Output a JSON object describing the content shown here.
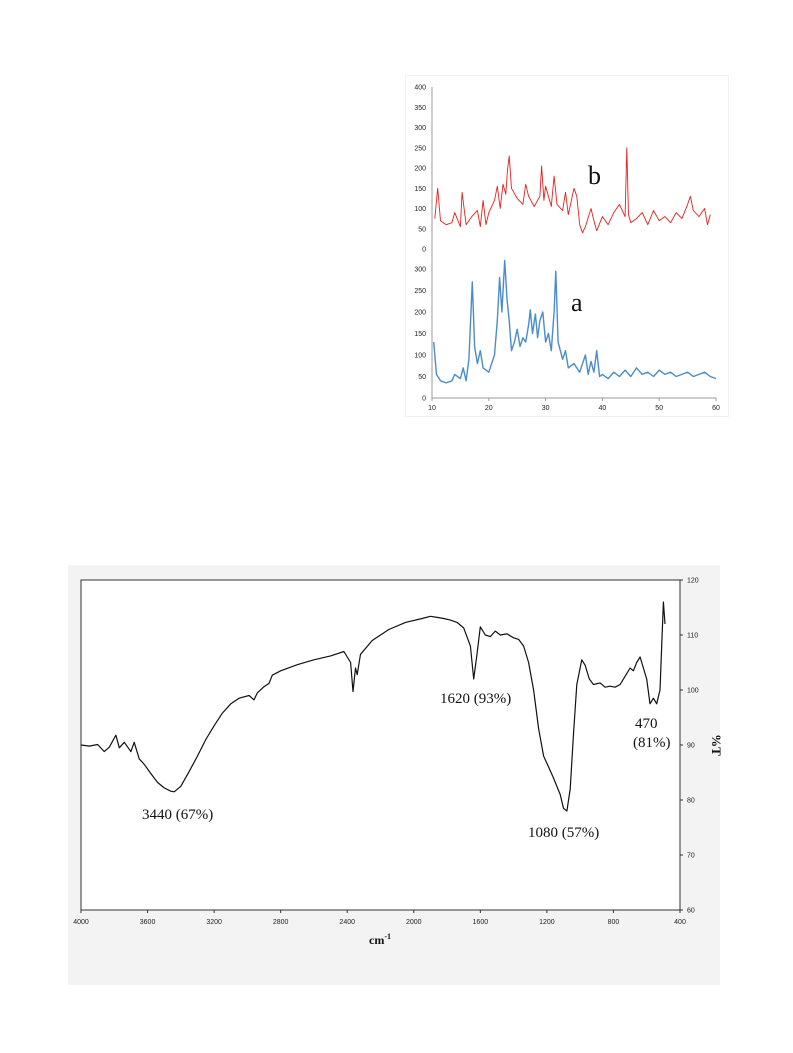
{
  "chart_data": [
    {
      "type": "line",
      "title": "",
      "xlabel": "",
      "ylabel": "",
      "xlim": [
        10,
        60
      ],
      "x_ticks": [
        "10",
        "20",
        "30",
        "40",
        "50",
        "60"
      ],
      "upper_ticks": [
        "0",
        "50",
        "100",
        "150",
        "200",
        "250",
        "300",
        "350",
        "400"
      ],
      "lower_ticks": [
        "0",
        "50",
        "100",
        "150",
        "200",
        "250",
        "300"
      ],
      "upper_ylim": [
        0,
        400
      ],
      "lower_ylim": [
        0,
        300
      ],
      "grid": false,
      "series": [
        {
          "name": "b",
          "color": "#e8201c",
          "panel": "upper",
          "points": [
            [
              10.5,
              75
            ],
            [
              11,
              150
            ],
            [
              11.5,
              70
            ],
            [
              12.5,
              60
            ],
            [
              13.5,
              65
            ],
            [
              14,
              90
            ],
            [
              15,
              55
            ],
            [
              15.3,
              140
            ],
            [
              16,
              60
            ],
            [
              17,
              80
            ],
            [
              18,
              95
            ],
            [
              18.5,
              55
            ],
            [
              19,
              120
            ],
            [
              19.5,
              60
            ],
            [
              20,
              90
            ],
            [
              21,
              120
            ],
            [
              21.5,
              155
            ],
            [
              22,
              100
            ],
            [
              22.5,
              160
            ],
            [
              23,
              135
            ],
            [
              23.3,
              195
            ],
            [
              23.6,
              230
            ],
            [
              24,
              150
            ],
            [
              25,
              125
            ],
            [
              26,
              110
            ],
            [
              26.5,
              160
            ],
            [
              27,
              130
            ],
            [
              28,
              105
            ],
            [
              29,
              130
            ],
            [
              29.3,
              205
            ],
            [
              29.7,
              120
            ],
            [
              30,
              155
            ],
            [
              31,
              105
            ],
            [
              31.5,
              180
            ],
            [
              32,
              110
            ],
            [
              33,
              95
            ],
            [
              33.5,
              140
            ],
            [
              34,
              85
            ],
            [
              35,
              150
            ],
            [
              35.5,
              130
            ],
            [
              36,
              60
            ],
            [
              36.5,
              40
            ],
            [
              37,
              55
            ],
            [
              38,
              100
            ],
            [
              38.5,
              70
            ],
            [
              39,
              45
            ],
            [
              40,
              80
            ],
            [
              41,
              60
            ],
            [
              42,
              90
            ],
            [
              43,
              110
            ],
            [
              44,
              80
            ],
            [
              44.3,
              250
            ],
            [
              44.6,
              85
            ],
            [
              45,
              65
            ],
            [
              46,
              75
            ],
            [
              47,
              90
            ],
            [
              48,
              60
            ],
            [
              49,
              95
            ],
            [
              50,
              70
            ],
            [
              51,
              80
            ],
            [
              52,
              65
            ],
            [
              53,
              90
            ],
            [
              54,
              75
            ],
            [
              55,
              110
            ],
            [
              55.5,
              130
            ],
            [
              56,
              95
            ],
            [
              57,
              80
            ],
            [
              58,
              100
            ],
            [
              58.5,
              60
            ],
            [
              59,
              85
            ]
          ]
        },
        {
          "name": "a",
          "color": "#4a8ccc",
          "panel": "lower",
          "points": [
            [
              10.3,
              130
            ],
            [
              10.8,
              55
            ],
            [
              11.5,
              40
            ],
            [
              12.5,
              35
            ],
            [
              13.5,
              40
            ],
            [
              14,
              55
            ],
            [
              15,
              45
            ],
            [
              15.5,
              70
            ],
            [
              16,
              40
            ],
            [
              16.5,
              90
            ],
            [
              17.1,
              270
            ],
            [
              17.5,
              120
            ],
            [
              18,
              80
            ],
            [
              18.5,
              110
            ],
            [
              19,
              70
            ],
            [
              20,
              60
            ],
            [
              21,
              100
            ],
            [
              21.5,
              180
            ],
            [
              21.9,
              280
            ],
            [
              22.3,
              200
            ],
            [
              22.8,
              320
            ],
            [
              23.2,
              230
            ],
            [
              23.6,
              180
            ],
            [
              24,
              110
            ],
            [
              24.5,
              130
            ],
            [
              25,
              160
            ],
            [
              25.5,
              120
            ],
            [
              26,
              140
            ],
            [
              26.5,
              130
            ],
            [
              27,
              170
            ],
            [
              27.3,
              205
            ],
            [
              27.7,
              150
            ],
            [
              28.2,
              195
            ],
            [
              28.6,
              140
            ],
            [
              29,
              180
            ],
            [
              29.5,
              200
            ],
            [
              30,
              130
            ],
            [
              30.5,
              150
            ],
            [
              31,
              110
            ],
            [
              31.5,
              200
            ],
            [
              31.8,
              295
            ],
            [
              32.2,
              130
            ],
            [
              33,
              90
            ],
            [
              33.5,
              110
            ],
            [
              34,
              70
            ],
            [
              35,
              80
            ],
            [
              36,
              60
            ],
            [
              37,
              100
            ],
            [
              37.5,
              55
            ],
            [
              38,
              85
            ],
            [
              38.5,
              60
            ],
            [
              39,
              110
            ],
            [
              39.5,
              50
            ],
            [
              40,
              55
            ],
            [
              41,
              45
            ],
            [
              42,
              60
            ],
            [
              43,
              50
            ],
            [
              44,
              65
            ],
            [
              45,
              50
            ],
            [
              46,
              70
            ],
            [
              47,
              55
            ],
            [
              48,
              60
            ],
            [
              49,
              50
            ],
            [
              50,
              65
            ],
            [
              51,
              55
            ],
            [
              52,
              60
            ],
            [
              53,
              50
            ],
            [
              54,
              55
            ],
            [
              55,
              60
            ],
            [
              56,
              50
            ],
            [
              57,
              55
            ],
            [
              58,
              60
            ],
            [
              59,
              50
            ],
            [
              60,
              45
            ]
          ]
        }
      ],
      "annotations": [
        "b",
        "a"
      ]
    },
    {
      "type": "line",
      "title": "",
      "xlabel": "cm-1",
      "ylabel": "%T",
      "xlim": [
        4000,
        400
      ],
      "ylim": [
        60,
        120
      ],
      "x_ticks": [
        "4000",
        "3600",
        "3200",
        "2800",
        "2400",
        "2000",
        "1600",
        "1200",
        "800",
        "400"
      ],
      "y_ticks": [
        "60",
        "70",
        "80",
        "90",
        "100",
        "110",
        "120"
      ],
      "grid": false,
      "series": [
        {
          "name": "",
          "color": "#111111",
          "points": [
            [
              4000,
              90
            ],
            [
              3950,
              89.8
            ],
            [
              3900,
              90.1
            ],
            [
              3860,
              88.8
            ],
            [
              3830,
              89.6
            ],
            [
              3790,
              91.8
            ],
            [
              3770,
              89.5
            ],
            [
              3740,
              90.5
            ],
            [
              3700,
              88.8
            ],
            [
              3680,
              90.5
            ],
            [
              3650,
              87.5
            ],
            [
              3620,
              86.5
            ],
            [
              3580,
              84.8
            ],
            [
              3540,
              83.2
            ],
            [
              3500,
              82.2
            ],
            [
              3460,
              81.6
            ],
            [
              3440,
              81.5
            ],
            [
              3400,
              82.5
            ],
            [
              3350,
              85.2
            ],
            [
              3300,
              88
            ],
            [
              3250,
              91
            ],
            [
              3200,
              93.5
            ],
            [
              3150,
              95.8
            ],
            [
              3100,
              97.5
            ],
            [
              3050,
              98.5
            ],
            [
              2990,
              99
            ],
            [
              2960,
              98.2
            ],
            [
              2940,
              99.5
            ],
            [
              2900,
              100.6
            ],
            [
              2870,
              101.2
            ],
            [
              2850,
              102.7
            ],
            [
              2800,
              103.5
            ],
            [
              2700,
              104.6
            ],
            [
              2600,
              105.5
            ],
            [
              2500,
              106.2
            ],
            [
              2420,
              107
            ],
            [
              2380,
              105
            ],
            [
              2365,
              99.7
            ],
            [
              2350,
              104
            ],
            [
              2340,
              102.8
            ],
            [
              2320,
              106.5
            ],
            [
              2250,
              109
            ],
            [
              2150,
              111
            ],
            [
              2050,
              112.3
            ],
            [
              1950,
              113
            ],
            [
              1900,
              113.4
            ],
            [
              1860,
              113.2
            ],
            [
              1820,
              113
            ],
            [
              1780,
              112.7
            ],
            [
              1740,
              112.3
            ],
            [
              1700,
              111.3
            ],
            [
              1660,
              108
            ],
            [
              1640,
              102
            ],
            [
              1620,
              106.5
            ],
            [
              1600,
              111.5
            ],
            [
              1570,
              110
            ],
            [
              1540,
              109.7
            ],
            [
              1510,
              110.7
            ],
            [
              1480,
              110
            ],
            [
              1440,
              110.2
            ],
            [
              1400,
              109.5
            ],
            [
              1370,
              109.2
            ],
            [
              1340,
              108
            ],
            [
              1310,
              105
            ],
            [
              1280,
              100
            ],
            [
              1250,
              93
            ],
            [
              1220,
              88
            ],
            [
              1190,
              86
            ],
            [
              1160,
              84
            ],
            [
              1120,
              81
            ],
            [
              1100,
              78.5
            ],
            [
              1080,
              78
            ],
            [
              1060,
              82
            ],
            [
              1040,
              92
            ],
            [
              1020,
              101
            ],
            [
              990,
              105.5
            ],
            [
              970,
              104.5
            ],
            [
              945,
              102
            ],
            [
              920,
              101
            ],
            [
              880,
              101.3
            ],
            [
              850,
              100.5
            ],
            [
              820,
              100.7
            ],
            [
              790,
              100.5
            ],
            [
              760,
              101
            ],
            [
              730,
              102.5
            ],
            [
              700,
              104
            ],
            [
              680,
              103.5
            ],
            [
              660,
              105
            ],
            [
              640,
              106
            ],
            [
              620,
              104
            ],
            [
              600,
              102
            ],
            [
              580,
              97.5
            ],
            [
              560,
              98.5
            ],
            [
              540,
              97.5
            ],
            [
              520,
              100
            ],
            [
              510,
              108
            ],
            [
              500,
              116
            ],
            [
              490,
              112
            ]
          ]
        }
      ],
      "annotations": [
        "1620 (93%)",
        "3440 (67%)",
        "1080 (57%)",
        "470",
        "(81%)"
      ]
    }
  ]
}
